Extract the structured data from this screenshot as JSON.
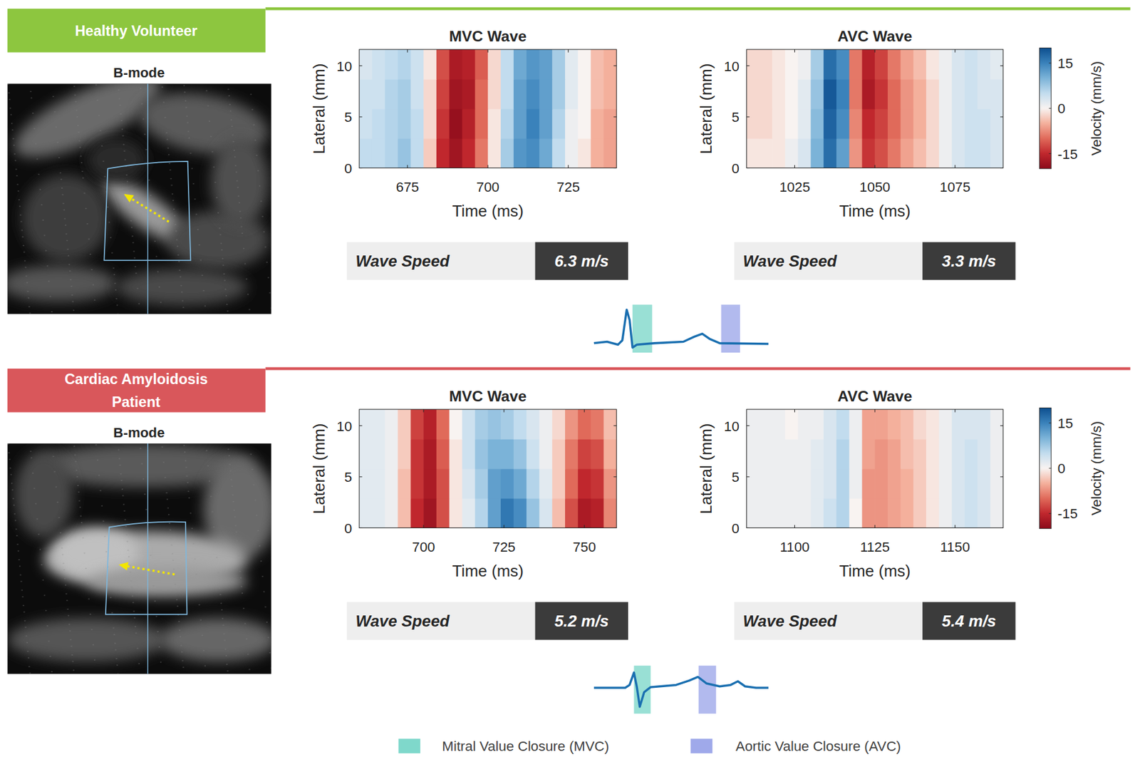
{
  "panels": [
    {
      "title": "Healthy Volunteer",
      "image_label": "B-mode",
      "colorbar": {
        "label": "Velocity (mm/s)",
        "range": [
          -20,
          20
        ],
        "ticks": [
          -15,
          0,
          15
        ]
      }
    },
    {
      "title": "Cardiac Amyloidosis Patient",
      "image_label": "B-mode",
      "colorbar": {
        "label": "Velocity (mm/s)",
        "range": [
          -20,
          20
        ],
        "ticks": [
          -15,
          0,
          15
        ]
      }
    }
  ],
  "legend": [
    {
      "name": "Mitral Value Closure (MVC)",
      "color": "#7fd8cb"
    },
    {
      "name": "Aortic Value Closure (AVC)",
      "color": "#9fa9ea"
    }
  ],
  "chart_data": [
    {
      "type": "heatmap",
      "title": "MVC Wave",
      "x_label": "Time (ms)",
      "y_label": "Lateral (mm)",
      "x": [
        662,
        666,
        670,
        674,
        678,
        682,
        686,
        690,
        694,
        698,
        702,
        706,
        710,
        714,
        718,
        722,
        726,
        730,
        734,
        738
      ],
      "y": [
        1.45,
        4.35,
        7.25,
        10.15
      ],
      "cells": [
        [
          5,
          5,
          6,
          8,
          5,
          -3,
          -15,
          -18,
          -15,
          -9,
          -1,
          7,
          13,
          14,
          11,
          5,
          1,
          -1,
          -5,
          -6
        ],
        [
          4,
          5,
          6,
          7,
          5,
          -2,
          -14,
          -19,
          -16,
          -10,
          -1,
          6,
          12,
          15,
          12,
          6,
          1,
          0,
          -5,
          -6
        ],
        [
          4,
          4,
          6,
          7,
          4,
          -2,
          -13,
          -18,
          -17,
          -10,
          -2,
          5,
          12,
          14,
          12,
          7,
          2,
          0,
          -4,
          -5
        ],
        [
          3,
          4,
          5,
          6,
          4,
          -1,
          -12,
          -17,
          -16,
          -11,
          -2,
          5,
          11,
          13,
          12,
          7,
          2,
          0,
          -4,
          -5
        ]
      ],
      "xlim": [
        660,
        740
      ],
      "xticks": [
        675,
        700,
        725
      ],
      "ylim": [
        0,
        11.6
      ],
      "yticks": [
        0,
        5,
        10
      ],
      "annotations": [
        "Wave Speed",
        "6.3 m/s"
      ]
    },
    {
      "type": "heatmap",
      "title": "AVC Wave",
      "x_label": "Time (ms)",
      "y_label": "Lateral (mm)",
      "x": [
        1012,
        1016,
        1020,
        1024,
        1028,
        1032,
        1036,
        1040,
        1044,
        1048,
        1052,
        1056,
        1060,
        1064,
        1068,
        1072,
        1076,
        1080,
        1084,
        1088
      ],
      "y": [
        1.45,
        4.35,
        7.25,
        10.15
      ],
      "cells": [
        [
          -1,
          -1,
          -1,
          1,
          3,
          10,
          17,
          12,
          -7,
          -14,
          -12,
          -9,
          -6,
          -4,
          -2,
          1,
          3,
          4,
          4,
          3
        ],
        [
          -2,
          -2,
          -1,
          0,
          2,
          9,
          18,
          14,
          -8,
          -15,
          -13,
          -10,
          -7,
          -5,
          -2,
          1,
          3,
          4,
          4,
          3
        ],
        [
          -2,
          -2,
          -1,
          0,
          2,
          8,
          19,
          15,
          -9,
          -17,
          -14,
          -10,
          -7,
          -5,
          -2,
          1,
          3,
          4,
          3,
          3
        ],
        [
          -2,
          -2,
          -1,
          0,
          1,
          7,
          17,
          14,
          -9,
          -16,
          -13,
          -9,
          -6,
          -4,
          -1,
          1,
          3,
          4,
          3,
          2
        ]
      ],
      "xlim": [
        1010,
        1090
      ],
      "xticks": [
        1025,
        1050,
        1075
      ],
      "ylim": [
        0,
        11.6
      ],
      "yticks": [
        0,
        5,
        10
      ],
      "annotations": [
        "Wave Speed",
        "3.3 m/s"
      ]
    },
    {
      "type": "heatmap",
      "title": "MVC Wave",
      "x_label": "Time (ms)",
      "y_label": "Lateral (mm)",
      "x": [
        682,
        686,
        690,
        694,
        698,
        702,
        706,
        710,
        714,
        718,
        722,
        726,
        730,
        734,
        738,
        742,
        746,
        750,
        754,
        758
      ],
      "y": [
        1.45,
        4.35,
        7.25,
        10.15
      ],
      "cells": [
        [
          2,
          2,
          1,
          -4,
          -15,
          -18,
          -12,
          -1,
          2,
          6,
          12,
          16,
          14,
          8,
          3,
          -4,
          -12,
          -17,
          -16,
          -8
        ],
        [
          2,
          2,
          1,
          -4,
          -14,
          -17,
          -12,
          -1,
          3,
          7,
          12,
          13,
          11,
          6,
          2,
          -3,
          -10,
          -15,
          -14,
          -7
        ],
        [
          2,
          2,
          1,
          -3,
          -14,
          -17,
          -11,
          -1,
          4,
          8,
          10,
          10,
          8,
          4,
          1,
          -3,
          -9,
          -13,
          -12,
          -5
        ],
        [
          2,
          2,
          1,
          -3,
          -13,
          -16,
          -10,
          0,
          4,
          7,
          8,
          7,
          5,
          3,
          1,
          -2,
          -7,
          -10,
          -9,
          -4
        ]
      ],
      "xlim": [
        680,
        760
      ],
      "xticks": [
        700,
        725,
        750
      ],
      "ylim": [
        0,
        11.6
      ],
      "yticks": [
        0,
        5,
        10
      ],
      "annotations": [
        "Wave Speed",
        "5.2 m/s"
      ]
    },
    {
      "type": "heatmap",
      "title": "AVC Wave",
      "x_label": "Time (ms)",
      "y_label": "Lateral (mm)",
      "x": [
        1087,
        1091,
        1095,
        1099,
        1103,
        1107,
        1111,
        1115,
        1119,
        1123,
        1127,
        1131,
        1135,
        1139,
        1143,
        1147,
        1151,
        1155,
        1159,
        1163
      ],
      "y": [
        1.45,
        4.35,
        7.25,
        10.15
      ],
      "cells": [
        [
          1,
          1,
          1,
          1,
          1,
          2,
          4,
          6,
          0,
          -7,
          -7,
          -6,
          -5,
          -3,
          -1,
          1,
          3,
          4,
          3,
          1
        ],
        [
          1,
          1,
          1,
          1,
          1,
          2,
          3,
          6,
          1,
          -7,
          -7,
          -6,
          -5,
          -3,
          -1,
          1,
          3,
          4,
          3,
          1
        ],
        [
          1,
          1,
          1,
          1,
          1,
          2,
          3,
          6,
          1,
          -6,
          -7,
          -6,
          -4,
          -3,
          -1,
          1,
          3,
          4,
          3,
          1
        ],
        [
          1,
          1,
          1,
          0,
          1,
          1,
          3,
          5,
          1,
          -6,
          -6,
          -5,
          -4,
          -2,
          -1,
          1,
          3,
          3,
          3,
          1
        ]
      ],
      "xlim": [
        1085,
        1165
      ],
      "xticks": [
        1100,
        1125,
        1150
      ],
      "ylim": [
        0,
        11.6
      ],
      "yticks": [
        0,
        5,
        10
      ],
      "annotations": [
        "Wave Speed",
        "5.4 m/s"
      ]
    }
  ]
}
